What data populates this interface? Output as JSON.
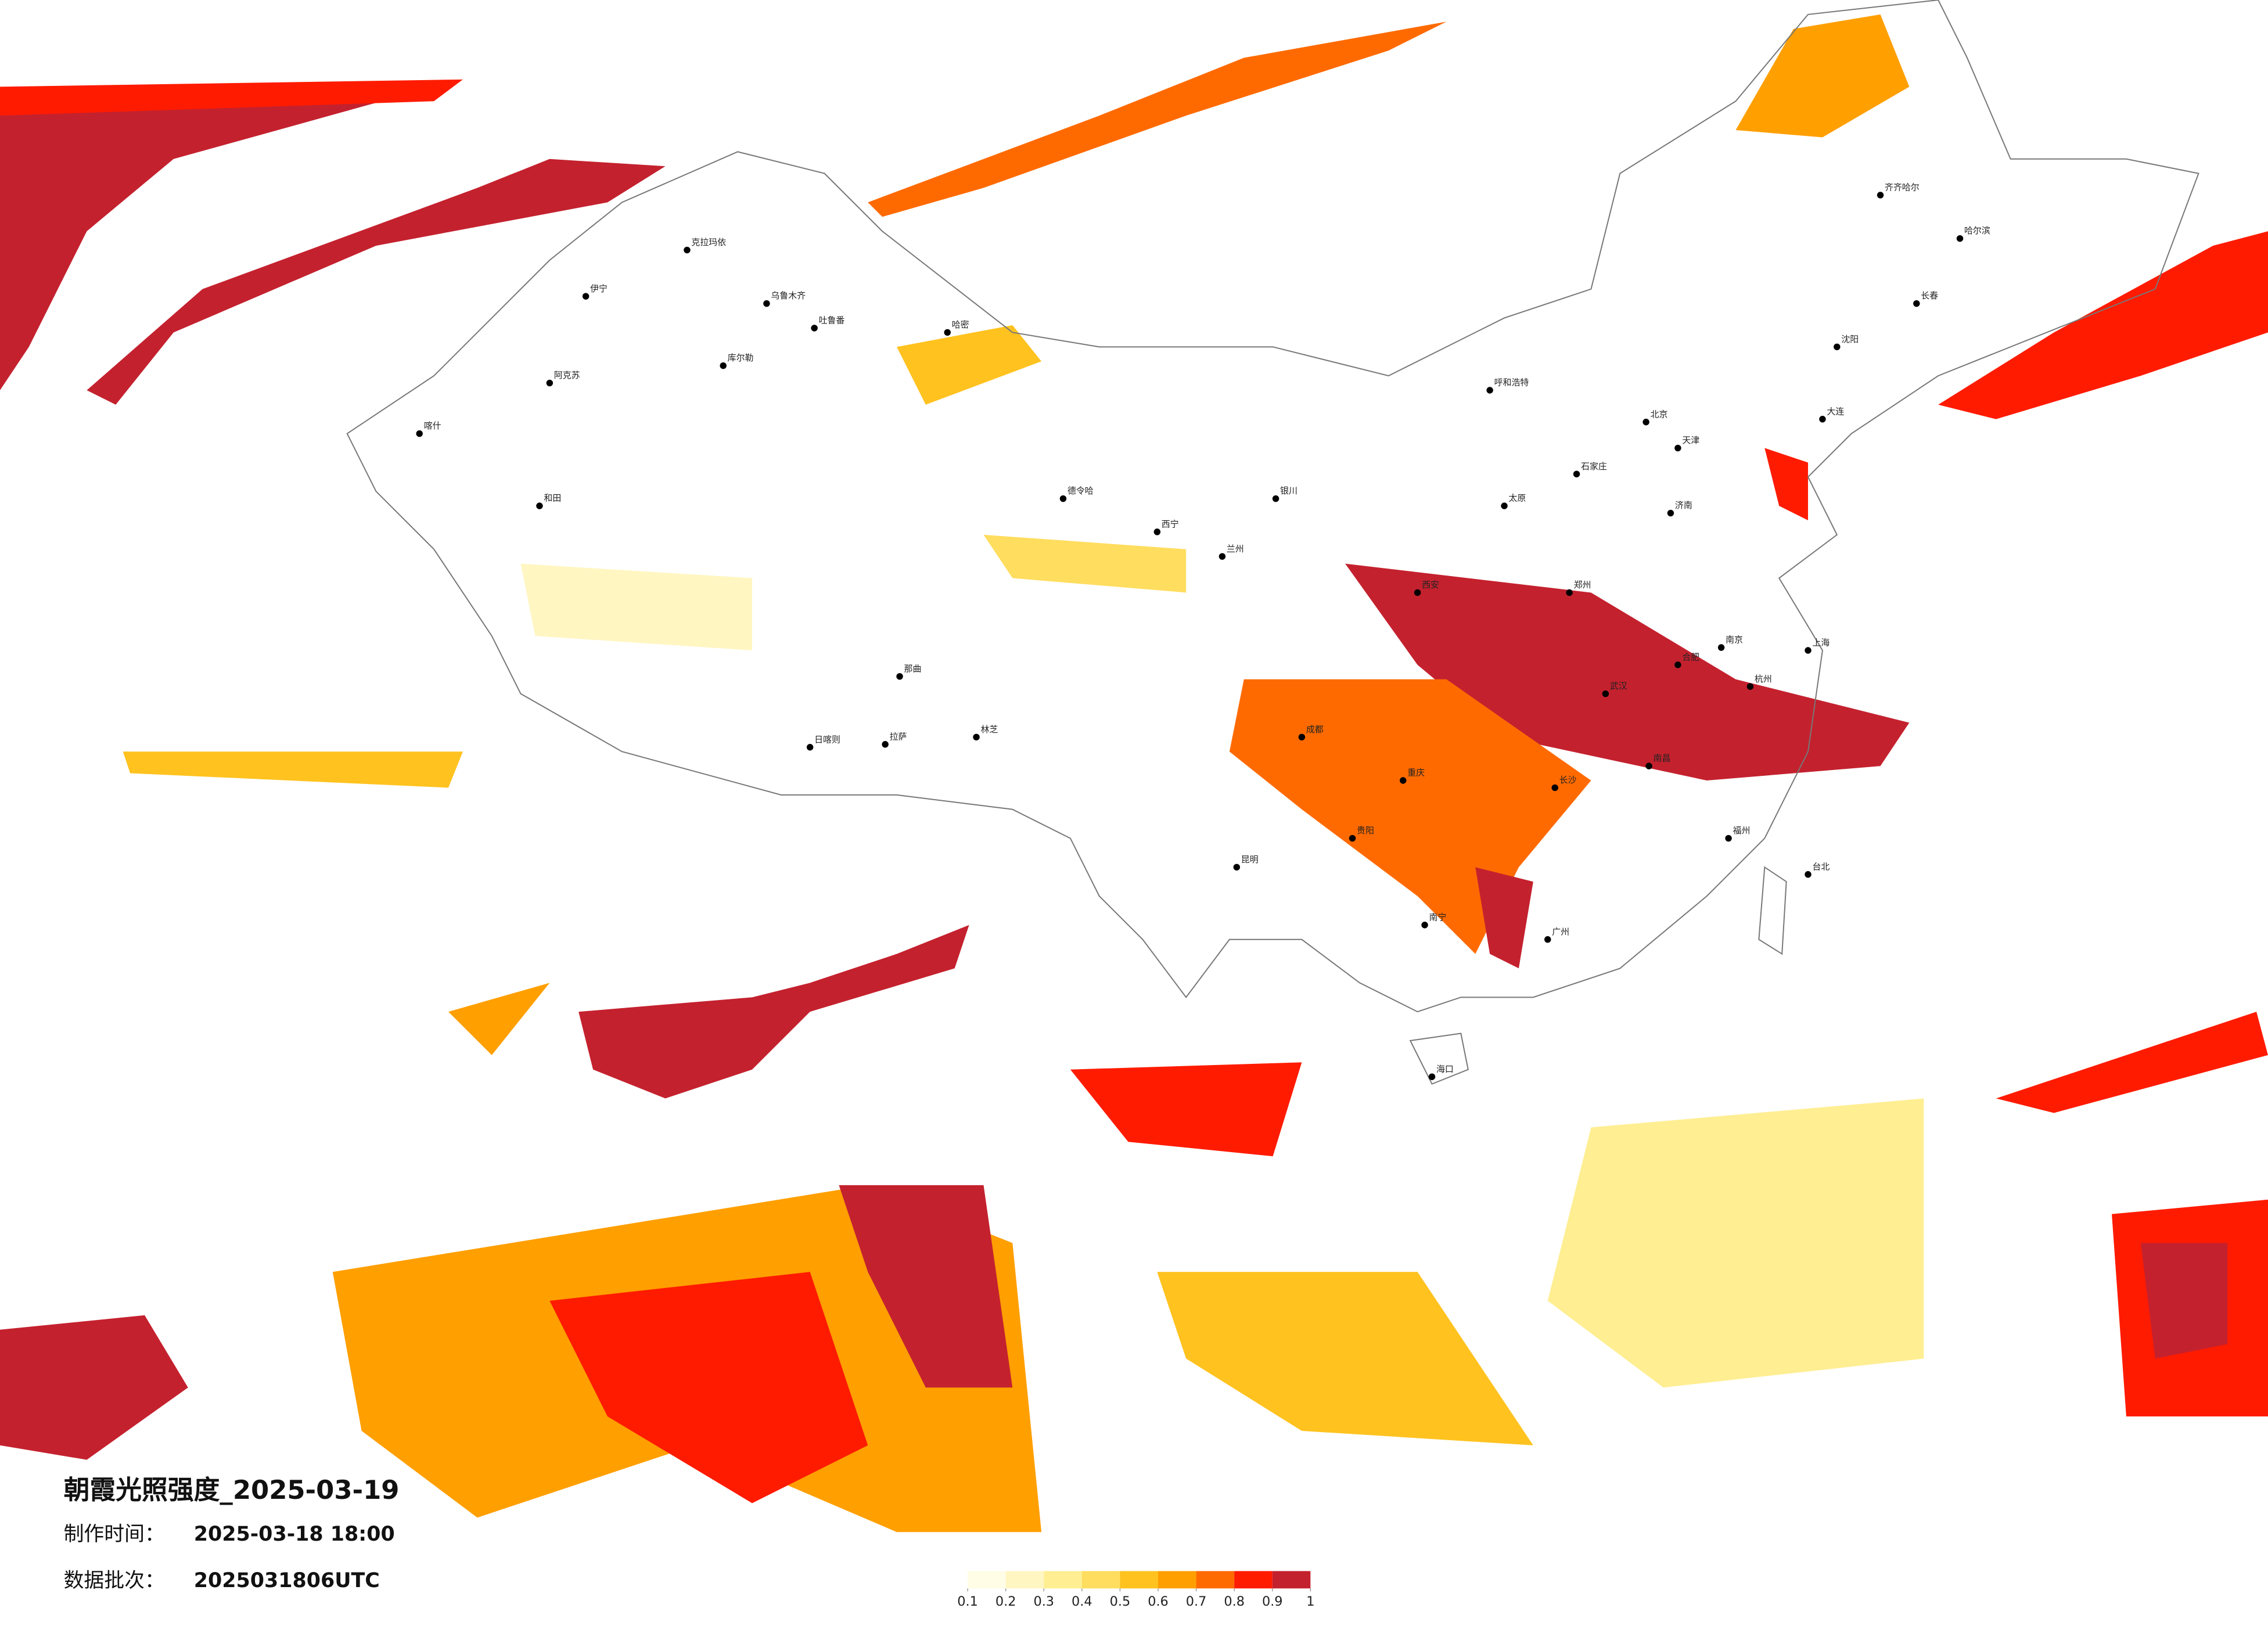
{
  "title": "朝霞光照强度_2025-03-19",
  "production_time": {
    "label": "制作时间：",
    "value": "2025-03-18 18:00"
  },
  "data_batch": {
    "label": "数据批次：",
    "value": "2025031806UTC"
  },
  "legend": {
    "ticks": [
      0.1,
      0.2,
      0.3,
      0.4,
      0.5,
      0.6,
      0.7,
      0.8,
      0.9,
      1
    ],
    "colors": [
      "#fffde6",
      "#fff6c2",
      "#ffee92",
      "#ffdd5e",
      "#ffc21f",
      "#ff9f00",
      "#ff6a00",
      "#ff1b00",
      "#c4212e"
    ]
  },
  "cities": [
    "克拉玛依",
    "伊宁",
    "乌鲁木齐",
    "吐鲁番",
    "库尔勒",
    "阿克苏",
    "喀什",
    "和田",
    "哈密",
    "拉萨",
    "日喀则",
    "林芝",
    "那曲",
    "德令哈",
    "西宁",
    "兰州",
    "银川",
    "呼和浩特",
    "北京",
    "天津",
    "石家庄",
    "太原",
    "济南",
    "郑州",
    "西安",
    "成都",
    "重庆",
    "武汉",
    "长沙",
    "南昌",
    "贵阳",
    "昆明",
    "南宁",
    "广州",
    "福州",
    "杭州",
    "上海",
    "南京",
    "合肥",
    "沈阳",
    "长春",
    "哈尔滨",
    "齐齐哈尔",
    "大连",
    "海口",
    "台北"
  ]
}
